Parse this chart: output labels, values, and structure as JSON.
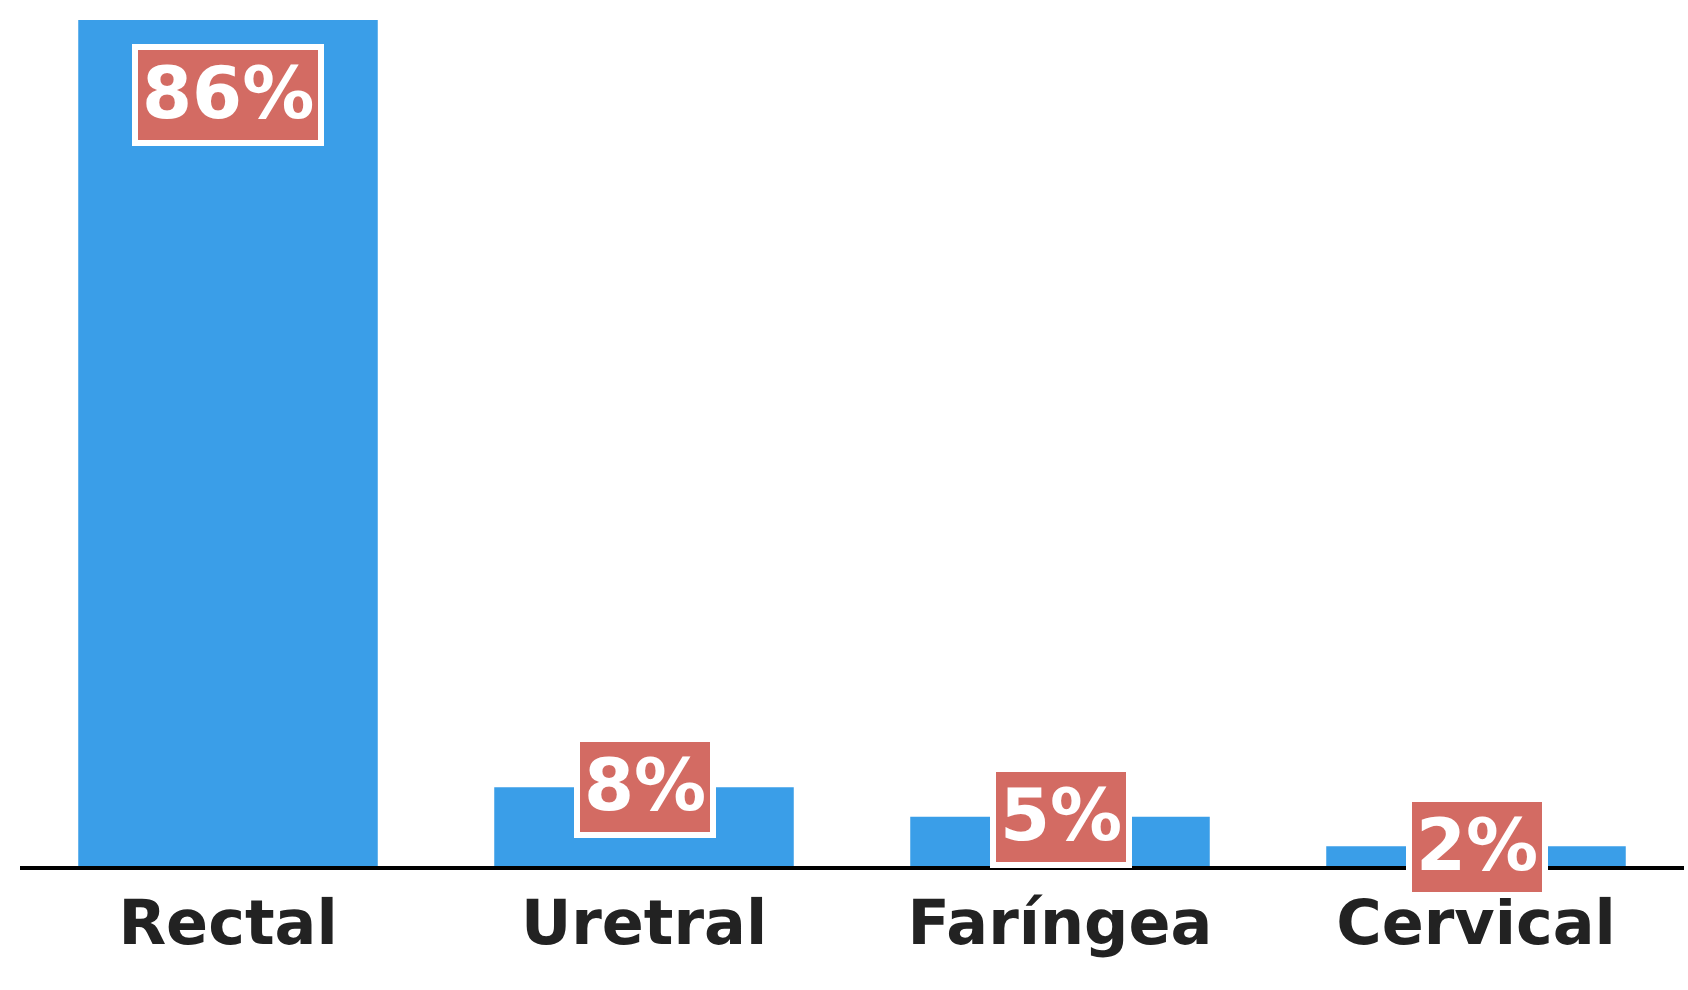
{
  "chart_data": {
    "type": "bar",
    "categories": [
      "Rectal",
      "Uretral",
      "Faríngea",
      "Cervical"
    ],
    "values": [
      86,
      8,
      5,
      2
    ],
    "value_labels": [
      "86%",
      "8%",
      "5%",
      "2%"
    ],
    "color": "#3a9ee8",
    "legend": false
  }
}
